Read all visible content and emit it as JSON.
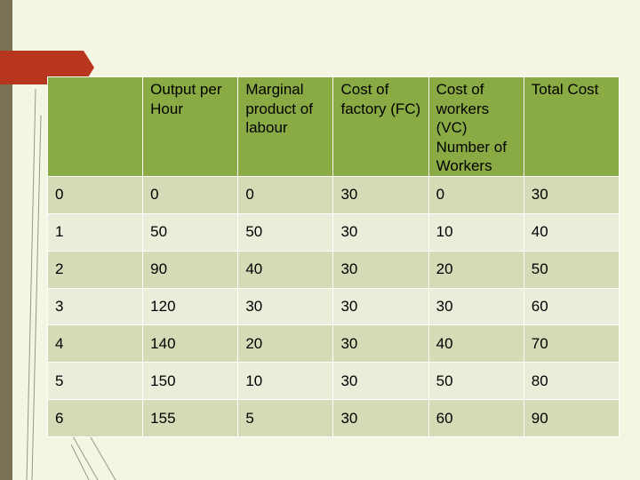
{
  "table": {
    "headers": [
      "",
      "Output per Hour",
      "Marginal product of labour",
      "Cost of factory (FC)",
      "Cost of workers (VC) Number of Workers",
      "Total Cost"
    ],
    "rows": [
      [
        "0",
        "0",
        "0",
        "30",
        "0",
        "30"
      ],
      [
        "1",
        "50",
        "50",
        "30",
        "10",
        "40"
      ],
      [
        "2",
        "90",
        "40",
        "30",
        "20",
        "50"
      ],
      [
        "3",
        "120",
        "30",
        "30",
        "30",
        "60"
      ],
      [
        "4",
        "140",
        "20",
        "30",
        "40",
        "70"
      ],
      [
        "5",
        "150",
        "10",
        "30",
        "50",
        "80"
      ],
      [
        "6",
        "155",
        "5",
        "30",
        "60",
        "90"
      ]
    ]
  },
  "colors": {
    "header_bg": "#8aaa44",
    "row_dark": "#d3dcb7",
    "row_light": "#e9eedb",
    "accent_tab": "#b8361e",
    "side_stripe": "#7b7256",
    "slide_bg": "#f4f6e4"
  }
}
